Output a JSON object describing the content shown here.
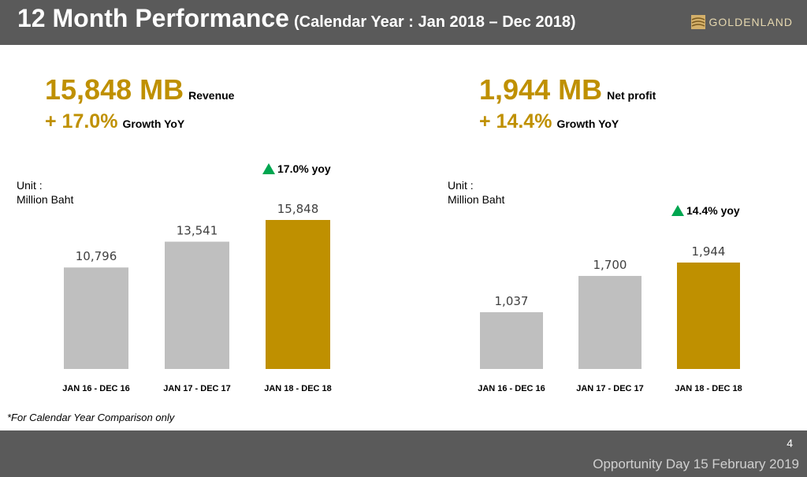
{
  "header": {
    "title": "12 Month Performance",
    "subtitle": "(Calendar Year : Jan 2018 – Dec 2018)",
    "logo_text": "GOLDENLAND"
  },
  "kpis": {
    "revenue_value": "15,848 MB",
    "revenue_label": "Revenue",
    "revenue_growth": "+ 17.0%",
    "revenue_growth_label": "Growth YoY",
    "profit_value": "1,944 MB",
    "profit_label": "Net profit",
    "profit_growth": "+ 14.4%",
    "profit_growth_label": "Growth YoY"
  },
  "units": {
    "left_line1": "Unit :",
    "left_line2": "Million Baht",
    "right_line1": "Unit :",
    "right_line2": "Million Baht"
  },
  "yoy": {
    "left": "17.0% yoy",
    "right": "14.4% yoy"
  },
  "colors": {
    "gray_bar": "#bfbfbf",
    "gold_bar": "#bf9000",
    "accent_green": "#00a650",
    "header_bg": "#5a5a5a"
  },
  "chart_data": [
    {
      "type": "bar",
      "categories": [
        "JAN 16 - DEC 16",
        "JAN 17 - DEC 17",
        "JAN 18 - DEC 18"
      ],
      "values": [
        10796,
        13541,
        15848
      ],
      "value_labels": [
        "10,796",
        "13,541",
        "15,848"
      ],
      "highlight_index": 2,
      "ylim": [
        0,
        16000
      ],
      "grid": false
    },
    {
      "type": "bar",
      "categories": [
        "JAN 16 - DEC 16",
        "JAN 17 - DEC 17",
        "JAN 18 - DEC 18"
      ],
      "values": [
        1037,
        1700,
        1944
      ],
      "value_labels": [
        "1,037",
        "1,700",
        "1,944"
      ],
      "highlight_index": 2,
      "ylim": [
        0,
        2000
      ],
      "grid": false
    }
  ],
  "footnote": "*For Calendar Year Comparison only",
  "footer": {
    "page_number": "4",
    "event_text": "Opportunity Day 15 February 2019"
  }
}
